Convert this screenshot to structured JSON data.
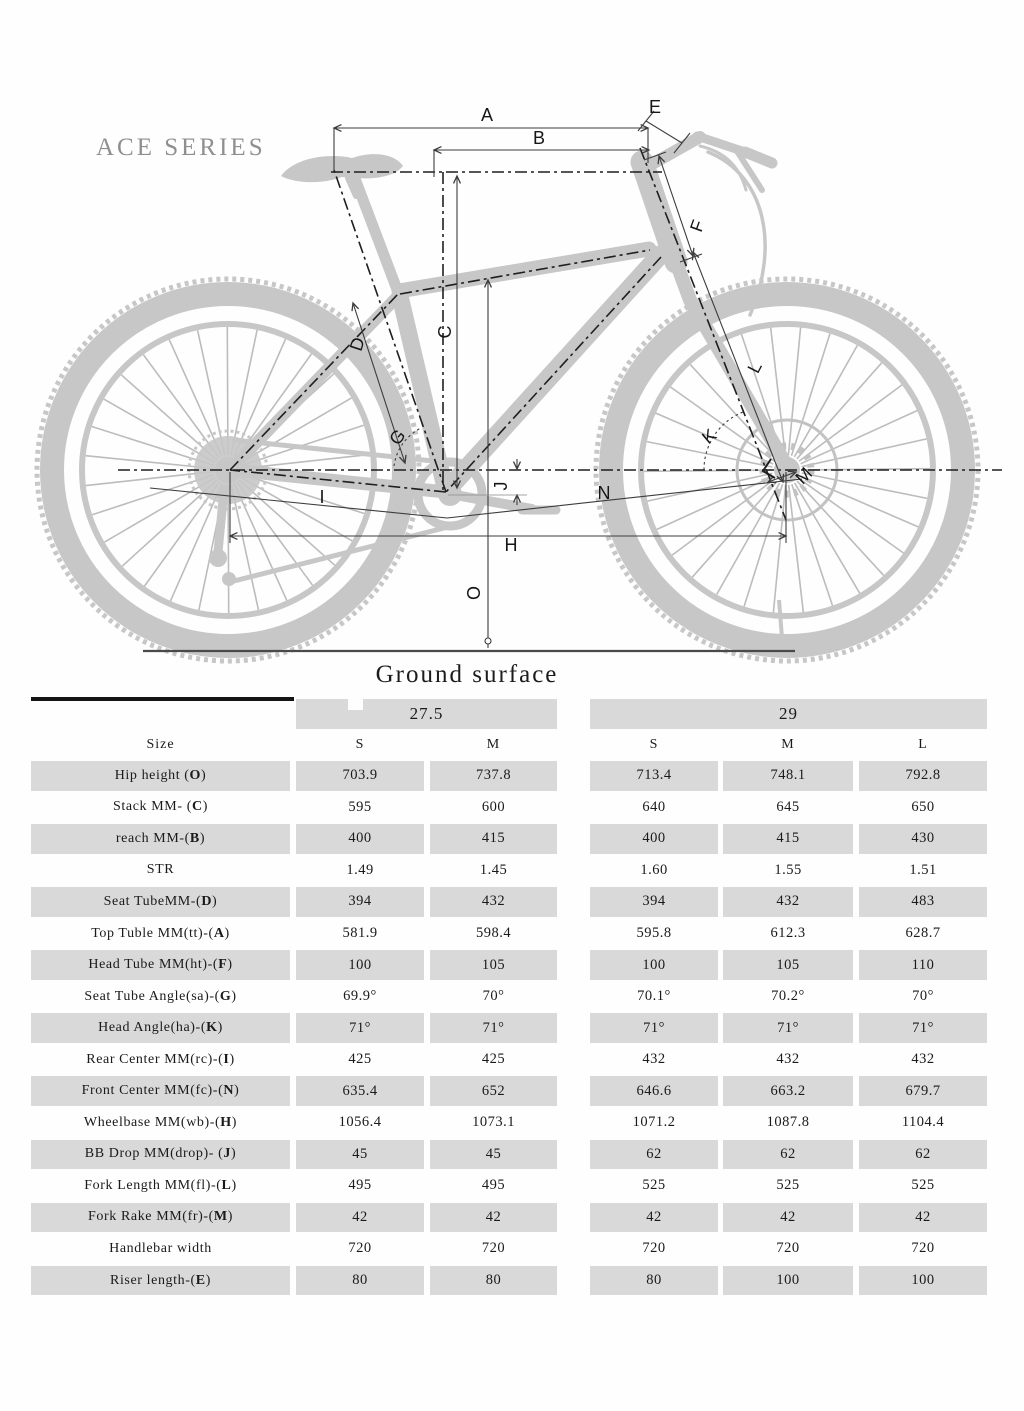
{
  "title": "ACE SERIES",
  "diagram": {
    "ground_label": "Ground surface",
    "labels": {
      "A": "A",
      "B": "B",
      "C": "C",
      "D": "D",
      "E": "E",
      "F": "F",
      "G": "G",
      "H": "H",
      "I": "I",
      "J": "J",
      "K": "K",
      "L": "L",
      "M": "M",
      "N": "N",
      "O": "O"
    }
  },
  "colors": {
    "cell_gray": "#d9d9d9",
    "bike_gray": "#c7c7c7",
    "dim_line": "#3c3c3c",
    "ground": "#4a4a4a",
    "ace_text": "#8f8f8f"
  },
  "table": {
    "size_label": "Size",
    "groups": [
      {
        "label": "27.5",
        "cols": [
          "S",
          "M"
        ]
      },
      {
        "label": "29",
        "cols": [
          "S",
          "M",
          "L"
        ]
      }
    ],
    "rows": [
      {
        "prefix": "Hip height (",
        "key": "O",
        "suffix": ")",
        "values": [
          "703.9",
          "737.8",
          "713.4",
          "748.1",
          "792.8"
        ]
      },
      {
        "prefix": "Stack MM- (",
        "key": "C",
        "suffix": ")",
        "values": [
          "595",
          "600",
          "640",
          "645",
          "650"
        ]
      },
      {
        "prefix": "reach MM-(",
        "key": "B",
        "suffix": ")",
        "values": [
          "400",
          "415",
          "400",
          "415",
          "430"
        ]
      },
      {
        "prefix": "STR",
        "key": "",
        "suffix": "",
        "values": [
          "1.49",
          "1.45",
          "1.60",
          "1.55",
          "1.51"
        ]
      },
      {
        "prefix": "Seat TubeMM-(",
        "key": "D",
        "suffix": ")",
        "values": [
          "394",
          "432",
          "394",
          "432",
          "483"
        ]
      },
      {
        "prefix": "Top Tuble MM(tt)-(",
        "key": "A",
        "suffix": ")",
        "values": [
          "581.9",
          "598.4",
          "595.8",
          "612.3",
          "628.7"
        ]
      },
      {
        "prefix": "Head Tube MM(ht)-(",
        "key": "F",
        "suffix": ")",
        "values": [
          "100",
          "105",
          "100",
          "105",
          "110"
        ]
      },
      {
        "prefix": "Seat Tube Angle(sa)-(",
        "key": "G",
        "suffix": ")",
        "values": [
          "69.9°",
          "70°",
          "70.1°",
          "70.2°",
          "70°"
        ]
      },
      {
        "prefix": "Head Angle(ha)-(",
        "key": "K",
        "suffix": ")",
        "values": [
          "71°",
          "71°",
          "71°",
          "71°",
          "71°"
        ]
      },
      {
        "prefix": "Rear Center MM(rc)-(",
        "key": "I",
        "suffix": ")",
        "values": [
          "425",
          "425",
          "432",
          "432",
          "432"
        ]
      },
      {
        "prefix": "Front Center MM(fc)-(",
        "key": "N",
        "suffix": ")",
        "values": [
          "635.4",
          "652",
          "646.6",
          "663.2",
          "679.7"
        ]
      },
      {
        "prefix": "Wheelbase MM(wb)-(",
        "key": "H",
        "suffix": ")",
        "values": [
          "1056.4",
          "1073.1",
          "1071.2",
          "1087.8",
          "1104.4"
        ]
      },
      {
        "prefix": "BB Drop MM(drop)- (",
        "key": "J",
        "suffix": ")",
        "values": [
          "45",
          "45",
          "62",
          "62",
          "62"
        ]
      },
      {
        "prefix": "Fork Length MM(fl)-(",
        "key": "L",
        "suffix": ")",
        "values": [
          "495",
          "495",
          "525",
          "525",
          "525"
        ]
      },
      {
        "prefix": "Fork Rake MM(fr)-(",
        "key": "M",
        "suffix": ")",
        "values": [
          "42",
          "42",
          "42",
          "42",
          "42"
        ]
      },
      {
        "prefix": "Handlebar width",
        "key": "",
        "suffix": "",
        "values": [
          "720",
          "720",
          "720",
          "720",
          "720"
        ]
      },
      {
        "prefix": "Riser length-(",
        "key": "E",
        "suffix": ")",
        "values": [
          "80",
          "80",
          "80",
          "100",
          "100"
        ]
      }
    ]
  }
}
